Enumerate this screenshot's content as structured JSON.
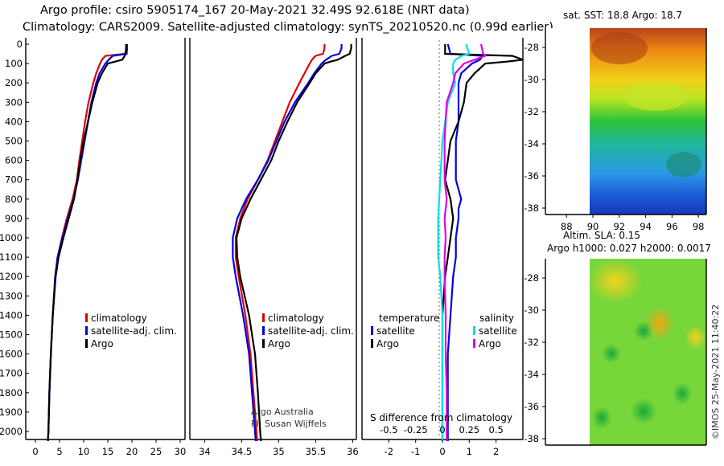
{
  "title": {
    "line1": "Argo profile: csiro 5905174_167 20-May-2021 32.49S 92.618E (NRT data)",
    "line2": "Climatology: CARS2009. Satellite-adjusted climatology: synTS_20210520.nc (0.99d earlier)"
  },
  "colors": {
    "climatology": "#e00000",
    "satellite": "#0000e0",
    "argo": "#000000",
    "sal_satellite": "#00e0e0",
    "sal_argo": "#e000e0"
  },
  "depth_ticks": [
    "0",
    "100",
    "200",
    "300",
    "400",
    "500",
    "600",
    "700",
    "800",
    "900",
    "1000",
    "1100",
    "1200",
    "1300",
    "1400",
    "1500",
    "1600",
    "1700",
    "1800",
    "1900",
    "2000"
  ],
  "chart_data": [
    {
      "type": "line",
      "name": "temperature-profile",
      "xlabel": "",
      "ylabel": "depth",
      "xlim": [
        -2,
        31
      ],
      "ylim": [
        2060,
        0
      ],
      "x_ticks": [
        "0",
        "5",
        "10",
        "15",
        "20",
        "25",
        "30"
      ],
      "legend": [
        "climatology",
        "satellite-adj. clim.",
        "Argo"
      ],
      "series": [
        {
          "name": "climatology",
          "depth": [
            0,
            20,
            50,
            60,
            80,
            100,
            150,
            200,
            300,
            400,
            500,
            600,
            700,
            800,
            900,
            1000,
            1100,
            1200,
            1400,
            1600,
            1800,
            2000,
            2050
          ],
          "values": [
            18.8,
            18.8,
            18.6,
            14.5,
            13.8,
            13.4,
            12.6,
            12.0,
            11.0,
            10.3,
            9.7,
            9.1,
            8.6,
            7.7,
            6.5,
            5.5,
            4.6,
            4.1,
            3.6,
            3.2,
            2.9,
            2.7,
            2.6
          ]
        },
        {
          "name": "satellite-adj. clim.",
          "depth": [
            0,
            20,
            50,
            60,
            80,
            100,
            150,
            200,
            300,
            400,
            500,
            600,
            700,
            800,
            900,
            1000,
            1100,
            1200,
            1400,
            1600,
            1800,
            2000,
            2050
          ],
          "values": [
            19.0,
            19.0,
            18.9,
            16.0,
            15.2,
            14.5,
            13.3,
            12.6,
            11.6,
            10.9,
            10.2,
            9.5,
            8.8,
            7.9,
            6.7,
            5.6,
            4.6,
            4.1,
            3.6,
            3.2,
            2.9,
            2.7,
            2.6
          ]
        },
        {
          "name": "Argo",
          "depth": [
            0,
            20,
            50,
            60,
            80,
            90,
            100,
            150,
            200,
            300,
            400,
            500,
            600,
            700,
            800,
            900,
            1000,
            1100,
            1200,
            1400,
            1600,
            1800,
            2000,
            2050
          ],
          "values": [
            18.8,
            18.8,
            18.7,
            18.5,
            18.0,
            16.5,
            15.0,
            13.8,
            12.9,
            11.8,
            10.9,
            10.0,
            9.3,
            8.7,
            8.0,
            6.9,
            5.8,
            4.8,
            4.2,
            3.6,
            3.2,
            2.9,
            2.7,
            2.6
          ]
        }
      ]
    },
    {
      "type": "line",
      "name": "salinity-profile",
      "xlabel": "",
      "ylabel": "depth",
      "xlim": [
        33.8,
        36.05
      ],
      "ylim": [
        2060,
        0
      ],
      "x_ticks": [
        "34",
        "34.5",
        "35",
        "35.5",
        "36"
      ],
      "legend": [
        "climatology",
        "satellite-adj. clim.",
        "Argo"
      ],
      "annotations": [
        "Argo Australia",
        "PI: Susan Wijffels"
      ],
      "series": [
        {
          "name": "climatology",
          "depth": [
            0,
            20,
            50,
            60,
            80,
            100,
            150,
            200,
            300,
            400,
            500,
            600,
            700,
            800,
            900,
            1000,
            1100,
            1200,
            1400,
            1600,
            1800,
            2000,
            2050
          ],
          "values": [
            35.62,
            35.62,
            35.6,
            35.5,
            35.45,
            35.42,
            35.35,
            35.28,
            35.15,
            35.05,
            34.95,
            34.85,
            34.72,
            34.58,
            34.48,
            34.42,
            34.42,
            34.46,
            34.55,
            34.62,
            34.66,
            34.7,
            34.71
          ]
        },
        {
          "name": "satellite-adj. clim.",
          "depth": [
            0,
            20,
            50,
            60,
            80,
            100,
            150,
            200,
            300,
            400,
            500,
            600,
            700,
            800,
            900,
            1000,
            1100,
            1200,
            1400,
            1600,
            1800,
            2000,
            2050
          ],
          "values": [
            35.85,
            35.85,
            35.82,
            35.72,
            35.64,
            35.58,
            35.48,
            35.4,
            35.22,
            35.08,
            34.97,
            34.86,
            34.72,
            34.56,
            34.44,
            34.38,
            34.38,
            34.42,
            34.52,
            34.6,
            34.64,
            34.68,
            34.69
          ]
        },
        {
          "name": "Argo",
          "depth": [
            0,
            20,
            50,
            60,
            80,
            90,
            100,
            150,
            200,
            300,
            400,
            500,
            600,
            700,
            800,
            900,
            1000,
            1100,
            1200,
            1400,
            1600,
            1800,
            2000,
            2050
          ],
          "values": [
            35.98,
            35.98,
            35.96,
            35.9,
            35.8,
            35.7,
            35.62,
            35.5,
            35.42,
            35.25,
            35.12,
            35.0,
            34.9,
            34.76,
            34.62,
            34.5,
            34.43,
            34.44,
            34.48,
            34.6,
            34.68,
            34.72,
            34.75,
            34.76
          ]
        }
      ]
    },
    {
      "type": "line",
      "name": "difference-from-climatology",
      "xlabel": "S difference from climatology",
      "ylabel": "depth",
      "xlim": [
        -3.0,
        3.0
      ],
      "ylim": [
        2060,
        0
      ],
      "x_ticks": [
        "-2",
        "-1",
        "0",
        "1",
        "2"
      ],
      "x2_ticks": [
        "-0.5",
        "-0.25",
        "0",
        "0.25",
        "0.5"
      ],
      "legend_groups": [
        "temperature",
        "salinity"
      ],
      "legend": [
        "satellite",
        "Argo",
        "satellite",
        "Argo"
      ],
      "series": [
        {
          "name": "temperature satellite",
          "depth": [
            0,
            50,
            60,
            80,
            100,
            150,
            200,
            250,
            300,
            400,
            500,
            600,
            700,
            750,
            800,
            850,
            900,
            1000,
            1100,
            1200,
            1400,
            1600,
            1800,
            2000,
            2050
          ],
          "values": [
            0.2,
            0.3,
            1.5,
            1.4,
            1.1,
            0.7,
            0.6,
            0.6,
            0.6,
            0.6,
            0.5,
            0.5,
            0.5,
            0.6,
            0.7,
            0.6,
            0.6,
            0.5,
            0.5,
            0.4,
            0.3,
            0.2,
            0.2,
            0.2,
            0.2
          ]
        },
        {
          "name": "temperature Argo",
          "depth": [
            0,
            50,
            60,
            80,
            90,
            100,
            150,
            200,
            300,
            400,
            500,
            600,
            700,
            800,
            900,
            1000,
            1100,
            1200,
            1400,
            1600,
            1800,
            2000,
            2050
          ],
          "values": [
            0.1,
            0.1,
            2.6,
            3.0,
            2.4,
            1.6,
            1.2,
            0.9,
            0.8,
            0.6,
            0.3,
            0.2,
            0.1,
            0.3,
            0.4,
            0.3,
            0.2,
            0.1,
            0.0,
            0.0,
            0.0,
            0.0,
            0.0
          ]
        },
        {
          "name": "salinity satellite",
          "depth": [
            0,
            50,
            60,
            80,
            100,
            150,
            200,
            300,
            500,
            700,
            900,
            1000,
            1100,
            1200,
            1400,
            1600,
            1800,
            2000,
            2050
          ],
          "values": [
            0.22,
            0.25,
            0.18,
            0.12,
            0.1,
            0.1,
            0.12,
            0.05,
            0.0,
            -0.02,
            -0.04,
            -0.04,
            -0.04,
            -0.02,
            0.0,
            0.0,
            0.0,
            0.0,
            0.0
          ]
        },
        {
          "name": "salinity Argo",
          "depth": [
            0,
            50,
            60,
            80,
            100,
            150,
            200,
            300,
            400,
            500,
            600,
            700,
            800,
            900,
            1000,
            1100,
            1200,
            1400,
            1600,
            1800,
            2000,
            2050
          ],
          "values": [
            0.36,
            0.38,
            0.4,
            0.3,
            0.2,
            0.12,
            0.1,
            0.04,
            0.03,
            0.02,
            0.02,
            0.02,
            0.04,
            0.02,
            0.03,
            0.02,
            0.02,
            0.03,
            0.03,
            0.04,
            0.04,
            0.04
          ]
        }
      ]
    },
    {
      "type": "heatmap",
      "name": "sst-map",
      "title": "sat. SST: 18.8 Argo: 18.7",
      "x_ticks": [
        "88",
        "90",
        "92",
        "94",
        "96",
        "98"
      ],
      "y_ticks": [
        "-28",
        "-30",
        "-32",
        "-34",
        "-36",
        "-38"
      ]
    },
    {
      "type": "heatmap",
      "name": "sla-map",
      "title_line1": "Altim. SLA: 0.15",
      "title_line2": "Argo h1000: 0.027 h2000: 0.0017",
      "y_ticks": [
        "-28",
        "-30",
        "-32",
        "-34",
        "-36",
        "-38"
      ]
    }
  ],
  "footer": {
    "credit": "©IMOS 25-May-2021 11:40:22"
  }
}
